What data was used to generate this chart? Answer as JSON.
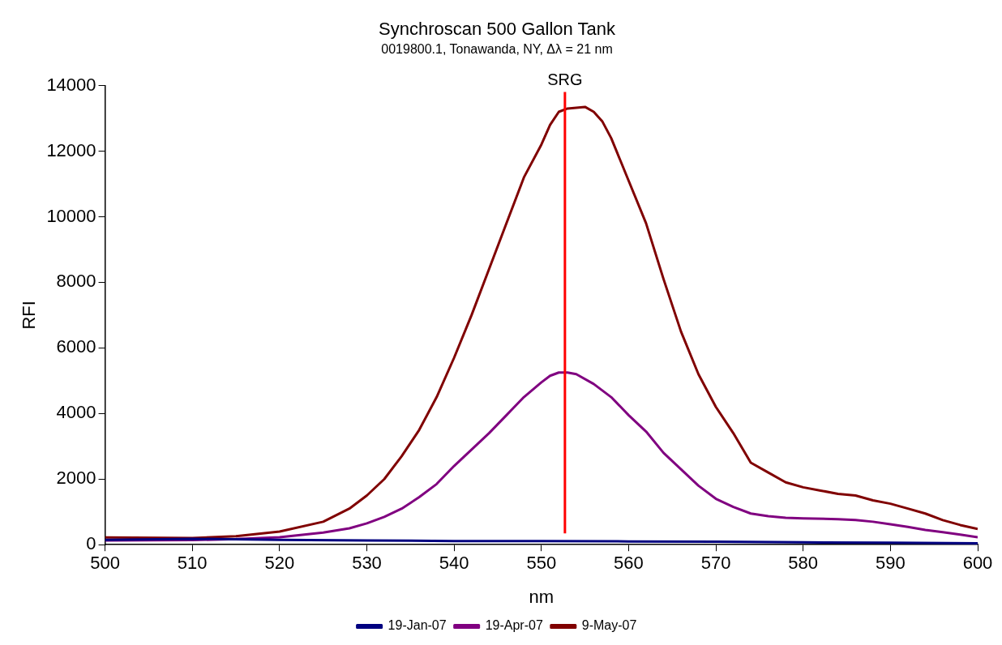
{
  "chart_data": {
    "type": "line",
    "title": "Synchroscan 500 Gallon Tank",
    "subtitle": "0019800.1, Tonawanda, NY, Δλ = 21 nm",
    "xlabel": "nm",
    "ylabel": "RFI",
    "xlim": [
      500,
      600
    ],
    "xticks": [
      500,
      510,
      520,
      530,
      540,
      550,
      560,
      570,
      580,
      590,
      600
    ],
    "ylim": [
      0,
      14000
    ],
    "yticks": [
      0,
      2000,
      4000,
      6000,
      8000,
      10000,
      12000,
      14000
    ],
    "grid": false,
    "legend": "bottom",
    "marker": "none",
    "line_style": "solid",
    "ref_lines": [
      {
        "axis": "x",
        "value": 552.7,
        "label": "SRG",
        "color": "#ff0000"
      }
    ],
    "series": [
      {
        "name": "19-Jan-07",
        "color": "#000080",
        "x": [
          500,
          510,
          520,
          530,
          540,
          550,
          560,
          570,
          580,
          590,
          600
        ],
        "values": [
          150,
          180,
          150,
          130,
          110,
          110,
          100,
          90,
          70,
          60,
          40
        ]
      },
      {
        "name": "19-Apr-07",
        "color": "#800080",
        "x": [
          500,
          510,
          515,
          520,
          525,
          528,
          530,
          532,
          534,
          536,
          538,
          540,
          542,
          544,
          546,
          548,
          550,
          551,
          552,
          553,
          554,
          556,
          558,
          560,
          562,
          564,
          566,
          568,
          570,
          572,
          574,
          576,
          578,
          580,
          584,
          586,
          588,
          590,
          592,
          594,
          596,
          598,
          600
        ],
        "values": [
          130,
          140,
          170,
          230,
          370,
          500,
          650,
          850,
          1100,
          1450,
          1850,
          2400,
          2900,
          3400,
          3950,
          4500,
          4950,
          5150,
          5250,
          5250,
          5200,
          4900,
          4500,
          3950,
          3450,
          2800,
          2300,
          1800,
          1400,
          1150,
          950,
          870,
          820,
          800,
          780,
          750,
          700,
          620,
          540,
          450,
          380,
          310,
          230
        ]
      },
      {
        "name": "9-May-07",
        "color": "#800000",
        "x": [
          500,
          510,
          515,
          520,
          525,
          528,
          530,
          532,
          534,
          536,
          538,
          540,
          542,
          544,
          546,
          548,
          550,
          551,
          552,
          553,
          555,
          556,
          557,
          558,
          560,
          562,
          564,
          566,
          568,
          570,
          572,
          574,
          576,
          578,
          580,
          582,
          584,
          586,
          588,
          590,
          592,
          594,
          596,
          598,
          600
        ],
        "values": [
          220,
          200,
          260,
          400,
          700,
          1100,
          1500,
          2000,
          2700,
          3500,
          4500,
          5700,
          7000,
          8400,
          9800,
          11200,
          12200,
          12800,
          13200,
          13300,
          13350,
          13200,
          12900,
          12400,
          11100,
          9800,
          8100,
          6500,
          5200,
          4200,
          3400,
          2500,
          2200,
          1900,
          1750,
          1650,
          1550,
          1500,
          1350,
          1250,
          1100,
          950,
          750,
          600,
          480
        ]
      }
    ]
  }
}
